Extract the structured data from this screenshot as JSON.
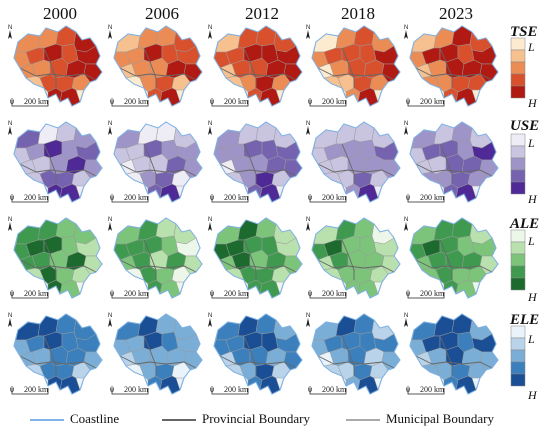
{
  "years": [
    "2000",
    "2006",
    "2012",
    "2018",
    "2023"
  ],
  "indicators": [
    {
      "key": "TSE",
      "title": "TSE",
      "low": "L",
      "high": "H",
      "colors": [
        "#fdebd0",
        "#f6c08f",
        "#ec8c55",
        "#d8502c",
        "#b01a12"
      ]
    },
    {
      "key": "USE",
      "title": "USE",
      "low": "L",
      "high": "H",
      "colors": [
        "#eeecf5",
        "#c9c5e1",
        "#9f94c8",
        "#7663b0",
        "#4f2995"
      ]
    },
    {
      "key": "ALE",
      "title": "ALE",
      "low": "L",
      "high": "H",
      "colors": [
        "#edf7e9",
        "#b9e1ad",
        "#7bc47a",
        "#3f9a4f",
        "#1d6a2e"
      ]
    },
    {
      "key": "ELE",
      "title": "ELE",
      "low": "L",
      "high": "H",
      "colors": [
        "#eaf2fa",
        "#b8d3ea",
        "#7aaed6",
        "#3b7fbd",
        "#1b4f95"
      ]
    }
  ],
  "scale_label": "200 km",
  "scale_zero": "0",
  "north_label": "N",
  "boundary_legend": [
    {
      "label": "Coastline",
      "color": "#7fb2e5"
    },
    {
      "label": "Provincial Boundary",
      "color": "#666666"
    },
    {
      "label": "Municipal Boundary",
      "color": "#a9a9a9"
    }
  ]
}
